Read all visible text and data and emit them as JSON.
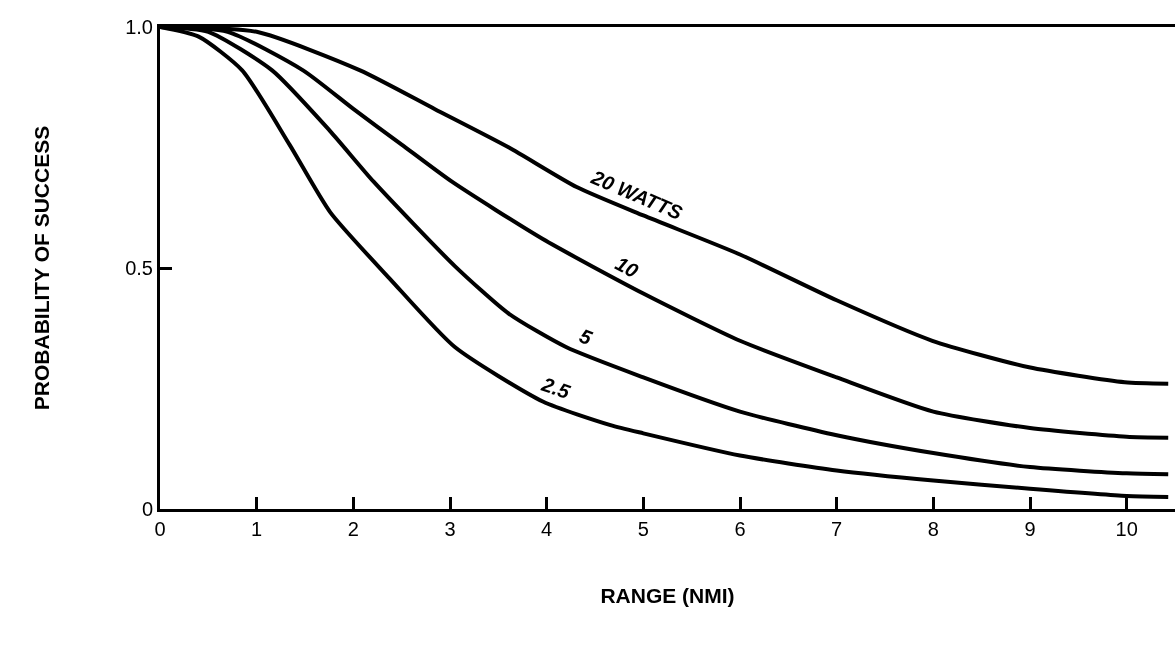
{
  "chart_data": {
    "type": "line",
    "xlabel": "RANGE (NMI)",
    "ylabel": "PROBABILITY OF SUCCESS",
    "xlim": [
      0,
      10.5
    ],
    "ylim": [
      0,
      1
    ],
    "xticks": [
      0,
      1,
      2,
      3,
      4,
      5,
      6,
      7,
      8,
      9,
      10
    ],
    "yticks": [
      0,
      0.5,
      {
        "value": 1,
        "label": "1.0"
      }
    ],
    "legend": false,
    "marker": "none",
    "line_style": "solid",
    "series": [
      {
        "name": "20 WATTS",
        "color": "#000000",
        "x": [
          0,
          1,
          2.07,
          2.84,
          3.61,
          4.31,
          5.0,
          6.0,
          7.0,
          7.99,
          8.99,
          9.98,
          10.43
        ],
        "values": [
          1.0,
          0.99,
          0.91,
          0.83,
          0.75,
          0.668,
          0.609,
          0.528,
          0.433,
          0.349,
          0.294,
          0.263,
          0.26
        ]
      },
      {
        "name": "10",
        "color": "#000000",
        "x": [
          0,
          0.7,
          1.48,
          2.0,
          2.5,
          3.02,
          3.96,
          5.0,
          6.0,
          7.0,
          8.0,
          9.0,
          10.0,
          10.43
        ],
        "values": [
          1.0,
          0.99,
          0.91,
          0.83,
          0.756,
          0.679,
          0.56,
          0.447,
          0.349,
          0.273,
          0.202,
          0.168,
          0.15,
          0.148
        ]
      },
      {
        "name": "5",
        "color": "#000000",
        "x": [
          0,
          0.5,
          1.16,
          1.76,
          2.21,
          3.05,
          3.61,
          4.2,
          5.0,
          6.0,
          7.0,
          8.0,
          9.0,
          10.0,
          10.43
        ],
        "values": [
          1.0,
          0.99,
          0.91,
          0.784,
          0.679,
          0.504,
          0.405,
          0.336,
          0.273,
          0.202,
          0.153,
          0.116,
          0.087,
          0.074,
          0.072
        ]
      },
      {
        "name": "2.5",
        "color": "#000000",
        "x": [
          0,
          0.4,
          0.85,
          1.34,
          1.76,
          2.39,
          3.05,
          3.96,
          4.66,
          5.0,
          6.0,
          7.0,
          8.0,
          9.0,
          10.0,
          10.43
        ],
        "values": [
          1.0,
          0.98,
          0.91,
          0.756,
          0.616,
          0.475,
          0.336,
          0.223,
          0.174,
          0.157,
          0.111,
          0.08,
          0.059,
          0.042,
          0.027,
          0.025
        ]
      }
    ]
  }
}
